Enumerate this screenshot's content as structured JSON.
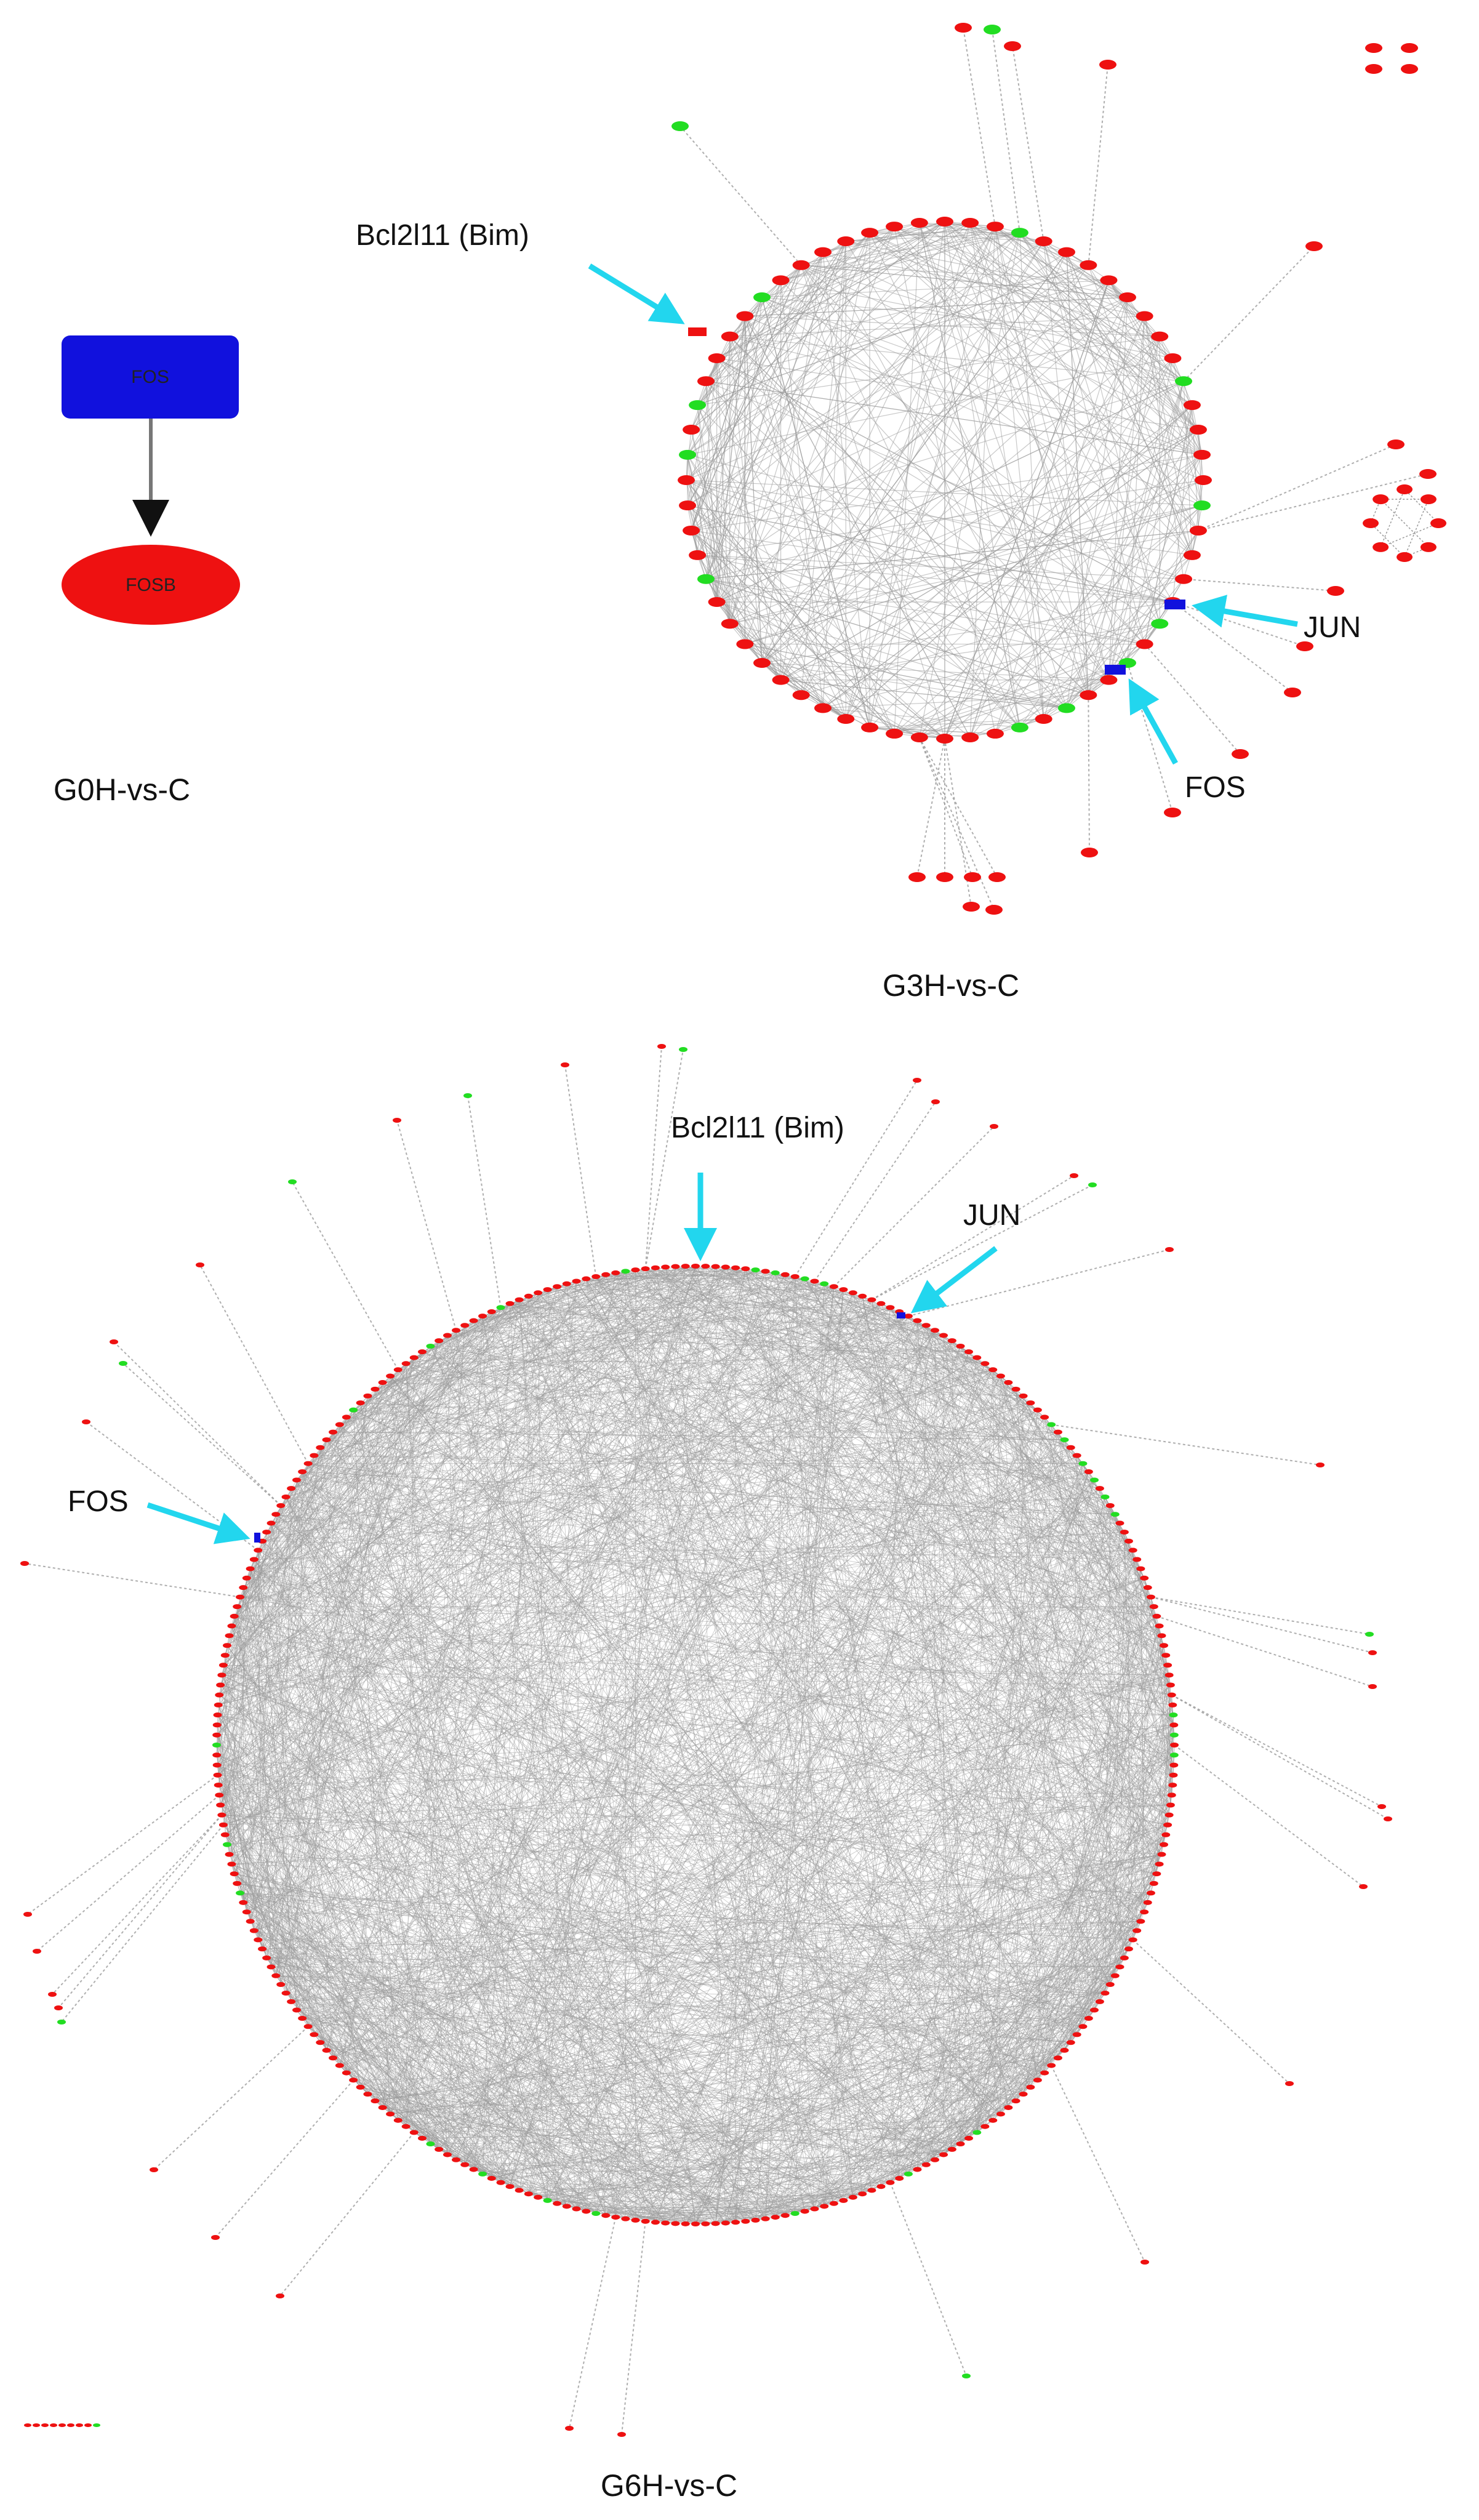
{
  "colors": {
    "up": "#ee1111",
    "down": "#22dd22",
    "hub": "#1111dd",
    "edge": "#9a9a9a",
    "arrow": "#22d6ee",
    "text": "#111111"
  },
  "g0": {
    "caption": "G0H-vs-C",
    "source_node": "FOS",
    "target_node": "FOSB"
  },
  "g3": {
    "caption": "G3H-vs-C",
    "callouts": [
      "Bcl2l11 (Bim)",
      "JUN",
      "FOS"
    ]
  },
  "g6": {
    "caption": "G6H-vs-C",
    "callouts": [
      "Bcl2l11 (Bim)",
      "JUN",
      "FOS"
    ]
  }
}
